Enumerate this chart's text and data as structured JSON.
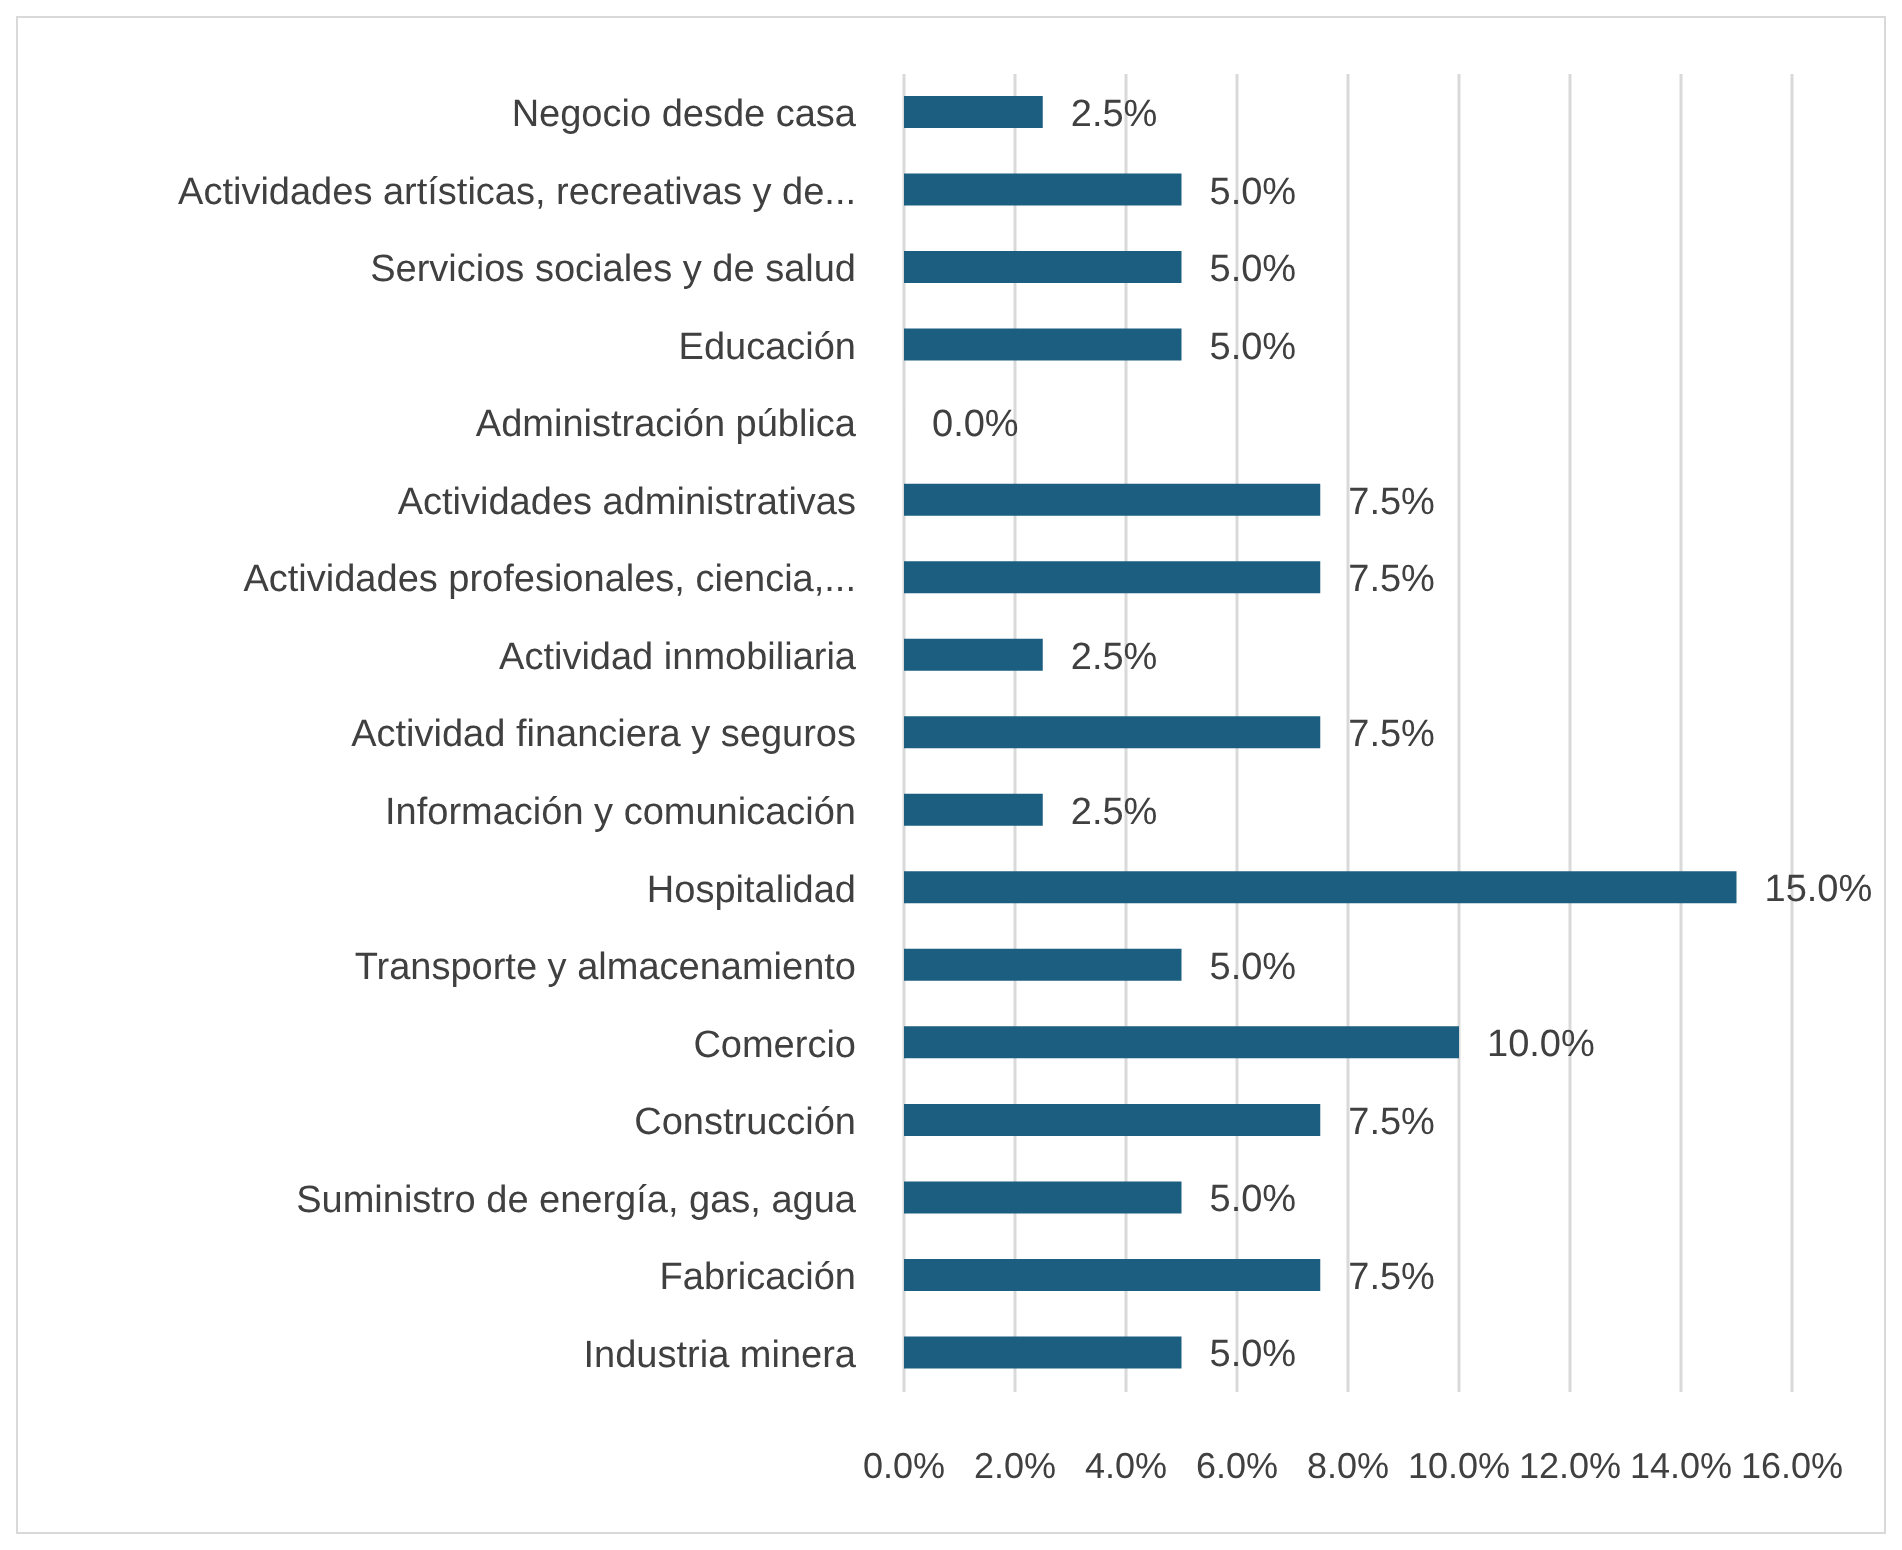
{
  "chart_data": {
    "type": "bar",
    "orientation": "horizontal",
    "categories": [
      "Negocio desde casa",
      "Actividades artísticas, recreativas y de...",
      "Servicios sociales y de salud",
      "Educación",
      "Administración pública",
      "Actividades administrativas",
      "Actividades profesionales, ciencia,...",
      "Actividad inmobiliaria",
      "Actividad financiera y seguros",
      "Información y comunicación",
      "Hospitalidad",
      "Transporte y almacenamiento",
      "Comercio",
      "Construcción",
      "Suministro de energía, gas, agua",
      "Fabricación",
      "Industria minera"
    ],
    "values": [
      2.5,
      5.0,
      5.0,
      5.0,
      0.0,
      7.5,
      7.5,
      2.5,
      7.5,
      2.5,
      15.0,
      5.0,
      10.0,
      7.5,
      5.0,
      7.5,
      5.0
    ],
    "value_labels": [
      "2.5%",
      "5.0%",
      "5.0%",
      "5.0%",
      "0.0%",
      "7.5%",
      "7.5%",
      "2.5%",
      "7.5%",
      "2.5%",
      "15.0%",
      "5.0%",
      "10.0%",
      "7.5%",
      "5.0%",
      "7.5%",
      "5.0%"
    ],
    "color": "#1b5e80",
    "xlim": [
      0,
      16
    ],
    "xticks": [
      {
        "value": 0,
        "label": "0.0%"
      },
      {
        "value": 2,
        "label": "2.0%"
      },
      {
        "value": 4,
        "label": "4.0%"
      },
      {
        "value": 6,
        "label": "6.0%"
      },
      {
        "value": 8,
        "label": "8.0%"
      },
      {
        "value": 10,
        "label": "10.0%"
      },
      {
        "value": 12,
        "label": "12.0%"
      },
      {
        "value": 14,
        "label": "14.0%"
      },
      {
        "value": 16,
        "label": "16.0%"
      }
    ],
    "grid": "x",
    "legend": false
  }
}
